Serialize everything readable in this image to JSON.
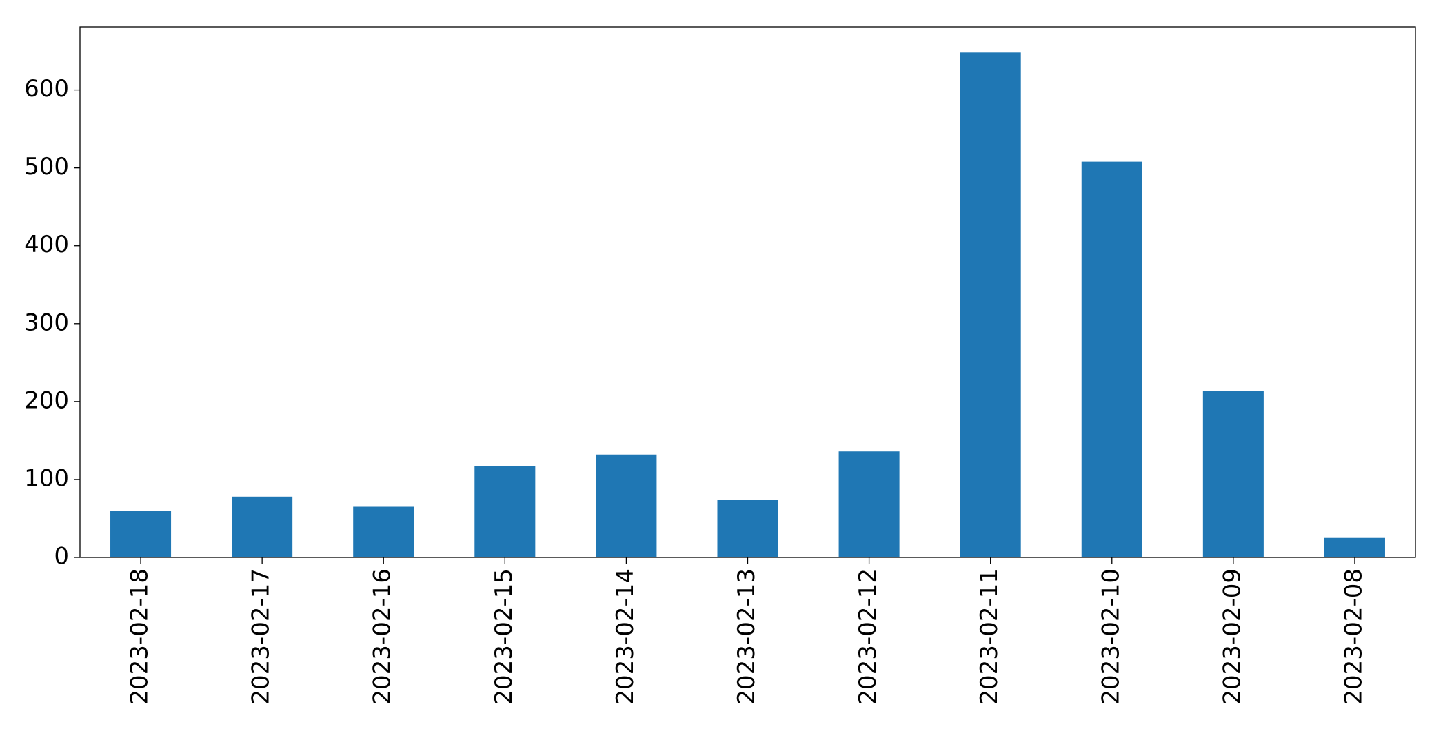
{
  "chart_data": {
    "type": "bar",
    "categories": [
      "2023-02-18",
      "2023-02-17",
      "2023-02-16",
      "2023-02-15",
      "2023-02-14",
      "2023-02-13",
      "2023-02-12",
      "2023-02-11",
      "2023-02-10",
      "2023-02-09",
      "2023-02-08"
    ],
    "values": [
      60,
      78,
      65,
      117,
      132,
      74,
      136,
      648,
      508,
      214,
      25
    ],
    "color": "#1f77b4",
    "ylim": [
      0,
      681
    ],
    "yticks": [
      0,
      100,
      200,
      300,
      400,
      500,
      600
    ],
    "grid": false
  }
}
